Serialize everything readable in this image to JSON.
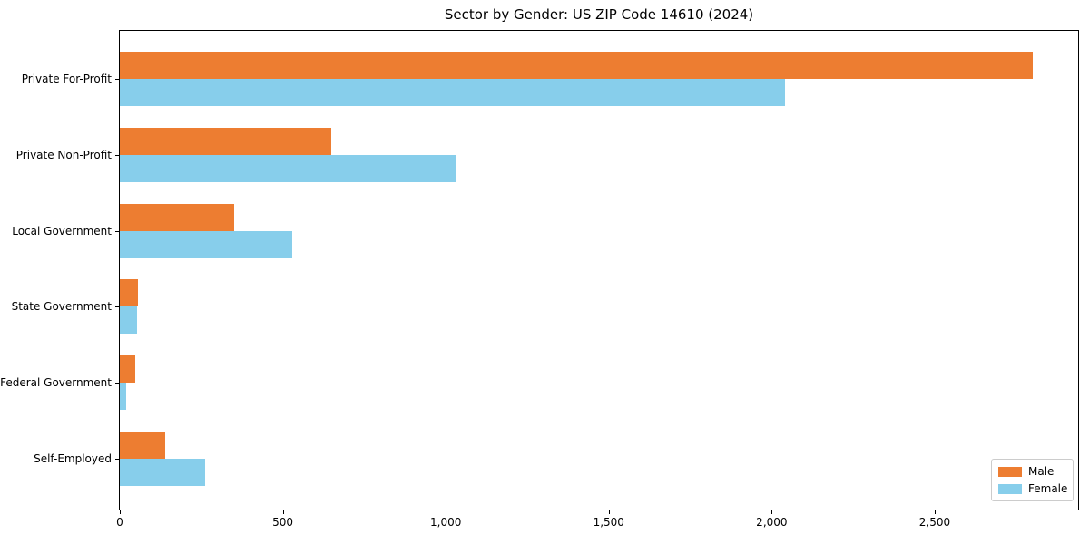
{
  "chart_data": {
    "type": "bar",
    "orientation": "horizontal",
    "title": "Sector by Gender: US ZIP Code 14610 (2024)",
    "categories": [
      "Private For-Profit",
      "Private Non-Profit",
      "Local Government",
      "State Government",
      "Federal Government",
      "Self-Employed"
    ],
    "series": [
      {
        "name": "Male",
        "color": "#ED7D31",
        "values": [
          2800,
          650,
          352,
          55,
          47,
          139
        ]
      },
      {
        "name": "Female",
        "color": "#87CEEB",
        "values": [
          2040,
          1030,
          529,
          52,
          20,
          261
        ]
      }
    ],
    "xlabel": "",
    "ylabel": "",
    "xlim": [
      0,
      2940
    ],
    "xticks": {
      "values": [
        0,
        500,
        1000,
        1500,
        2000,
        2500
      ],
      "labels": [
        "0",
        "500",
        "1,000",
        "1,500",
        "2,000",
        "2,500"
      ]
    },
    "legend": {
      "position": "lower right",
      "entries": [
        "Male",
        "Female"
      ]
    },
    "grid": false,
    "background_color": "#ffffff",
    "spine_color": "#000000"
  }
}
